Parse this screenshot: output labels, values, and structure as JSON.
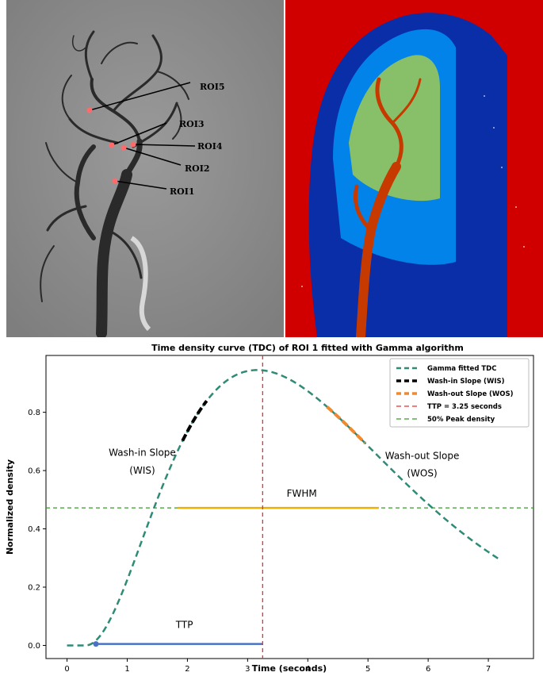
{
  "images": {
    "left": {
      "roi_labels": [
        "ROI5",
        "ROI3",
        "ROI4",
        "ROI2",
        "ROI1"
      ],
      "marker_color": "#ff6b6b"
    },
    "right": {
      "background_color": "#d10000",
      "vessel_colors": [
        "#0a2ea8",
        "#00a0ff",
        "#f7f000",
        "#c63a00"
      ]
    }
  },
  "chart_data": {
    "type": "line",
    "title": "Time density curve (TDC) of ROI 1 fitted with Gamma algorithm",
    "xlabel": "Time (seconds)",
    "ylabel": "Normalized density",
    "xlim": [
      -0.35,
      7.75
    ],
    "ylim": [
      -0.045,
      0.995
    ],
    "xticks": [
      0,
      1,
      2,
      3,
      4,
      5,
      6,
      7
    ],
    "yticks": [
      0.0,
      0.2,
      0.4,
      0.6,
      0.8
    ],
    "ytick_labels": [
      "0.0",
      "0.2",
      "0.4",
      "0.6",
      "0.8"
    ],
    "grid": false,
    "legend_position": "top-right",
    "gamma_fit": {
      "t0": 0.3,
      "alpha": 2.2,
      "beta": 1.3,
      "peak": 0.945,
      "x_start": 0.0,
      "x_end": 7.2,
      "color": "#2e8b76"
    },
    "series": [
      {
        "name": "Gamma fitted TDC",
        "color": "#2e8b76",
        "style": "dashed"
      },
      {
        "name": "Wash-in Slope (WIS)",
        "color": "#000000",
        "style": "dashed",
        "x_range": [
          1.92,
          2.32
        ]
      },
      {
        "name": "Wash-out Slope (WOS)",
        "color": "#f08a30",
        "style": "dashed",
        "x_range": [
          4.32,
          4.95
        ]
      },
      {
        "name": "TTP = 3.25 seconds",
        "color": "#e63030",
        "style": "dashed",
        "x": 3.25
      },
      {
        "name": "50% Peak density",
        "color": "#3a9a2a",
        "style": "dashed",
        "y": 0.472
      }
    ],
    "fwhm": {
      "label": "FWHM",
      "x": [
        1.84,
        5.18
      ],
      "y": 0.472,
      "color": "#f0b000"
    },
    "ttp_bar": {
      "label": "TTP",
      "x": [
        0.48,
        3.25
      ],
      "y": 0.005,
      "color": "#4a72c4"
    },
    "start_marker": {
      "x": 0.48,
      "y": 0.005,
      "color": "#4a72c4"
    },
    "annotations": [
      {
        "text": "Wash-in Slope",
        "x": 1.25,
        "y": 0.65
      },
      {
        "text": "(WIS)",
        "x": 1.25,
        "y": 0.59
      },
      {
        "text": "Wash-out Slope",
        "x": 5.9,
        "y": 0.64
      },
      {
        "text": "(WOS)",
        "x": 5.9,
        "y": 0.58
      },
      {
        "text": "FWHM",
        "x": 3.9,
        "y": 0.51
      },
      {
        "text": "TTP",
        "x": 1.95,
        "y": 0.06
      }
    ]
  }
}
